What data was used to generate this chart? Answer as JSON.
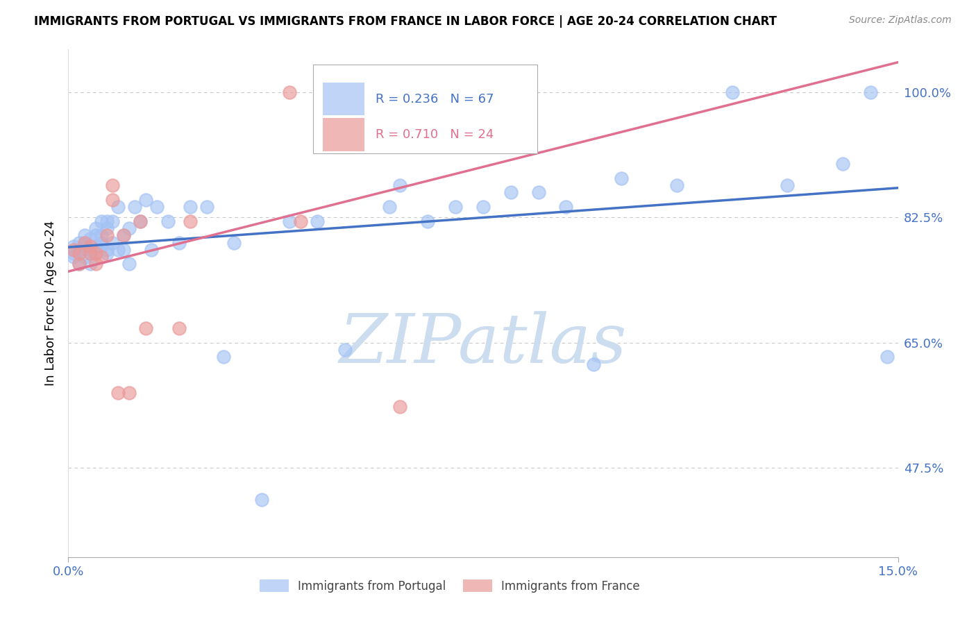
{
  "title": "IMMIGRANTS FROM PORTUGAL VS IMMIGRANTS FROM FRANCE IN LABOR FORCE | AGE 20-24 CORRELATION CHART",
  "source": "Source: ZipAtlas.com",
  "ylabel": "In Labor Force | Age 20-24",
  "xlim": [
    0.0,
    0.15
  ],
  "ylim": [
    0.35,
    1.06
  ],
  "yticks": [
    0.475,
    0.65,
    0.825,
    1.0
  ],
  "ytick_labels": [
    "47.5%",
    "65.0%",
    "82.5%",
    "100.0%"
  ],
  "background_color": "#ffffff",
  "grid_color": "#c8c8c8",
  "watermark": "ZIPatlas",
  "watermark_color": "#ccddf0",
  "axis_color": "#4472c4",
  "legend_portugal_r": "R = 0.236",
  "legend_portugal_n": "N = 67",
  "legend_france_r": "R = 0.710",
  "legend_france_n": "N = 24",
  "portugal_color": "#a4c2f4",
  "france_color": "#ea9999",
  "portugal_line_color": "#4472c4",
  "france_line_color": "#e07090",
  "portugal_x": [
    0.001,
    0.001,
    0.001,
    0.002,
    0.002,
    0.002,
    0.002,
    0.003,
    0.003,
    0.003,
    0.003,
    0.004,
    0.004,
    0.004,
    0.004,
    0.005,
    0.005,
    0.005,
    0.005,
    0.006,
    0.006,
    0.006,
    0.006,
    0.007,
    0.007,
    0.007,
    0.007,
    0.008,
    0.008,
    0.009,
    0.009,
    0.01,
    0.01,
    0.011,
    0.011,
    0.012,
    0.013,
    0.014,
    0.015,
    0.016,
    0.018,
    0.02,
    0.022,
    0.025,
    0.028,
    0.03,
    0.035,
    0.04,
    0.045,
    0.05,
    0.055,
    0.058,
    0.06,
    0.065,
    0.07,
    0.075,
    0.08,
    0.085,
    0.09,
    0.095,
    0.1,
    0.11,
    0.12,
    0.13,
    0.14,
    0.145,
    0.148
  ],
  "portugal_y": [
    0.775,
    0.785,
    0.77,
    0.78,
    0.775,
    0.79,
    0.76,
    0.77,
    0.785,
    0.79,
    0.8,
    0.775,
    0.78,
    0.795,
    0.76,
    0.8,
    0.81,
    0.785,
    0.775,
    0.8,
    0.82,
    0.785,
    0.79,
    0.81,
    0.775,
    0.82,
    0.78,
    0.82,
    0.79,
    0.84,
    0.78,
    0.8,
    0.78,
    0.81,
    0.76,
    0.84,
    0.82,
    0.85,
    0.78,
    0.84,
    0.82,
    0.79,
    0.84,
    0.84,
    0.63,
    0.79,
    0.43,
    0.82,
    0.82,
    0.64,
    1.0,
    0.84,
    0.87,
    0.82,
    0.84,
    0.84,
    0.86,
    0.86,
    0.84,
    0.62,
    0.88,
    0.87,
    1.0,
    0.87,
    0.9,
    1.0,
    0.63
  ],
  "france_x": [
    0.001,
    0.002,
    0.002,
    0.003,
    0.004,
    0.004,
    0.005,
    0.005,
    0.006,
    0.007,
    0.008,
    0.008,
    0.009,
    0.01,
    0.011,
    0.013,
    0.014,
    0.02,
    0.022,
    0.04,
    0.042,
    0.055,
    0.06,
    0.07
  ],
  "france_y": [
    0.78,
    0.775,
    0.76,
    0.79,
    0.775,
    0.785,
    0.76,
    0.775,
    0.77,
    0.8,
    0.87,
    0.85,
    0.58,
    0.8,
    0.58,
    0.82,
    0.67,
    0.67,
    0.82,
    1.0,
    0.82,
    1.0,
    0.56,
    1.0
  ]
}
